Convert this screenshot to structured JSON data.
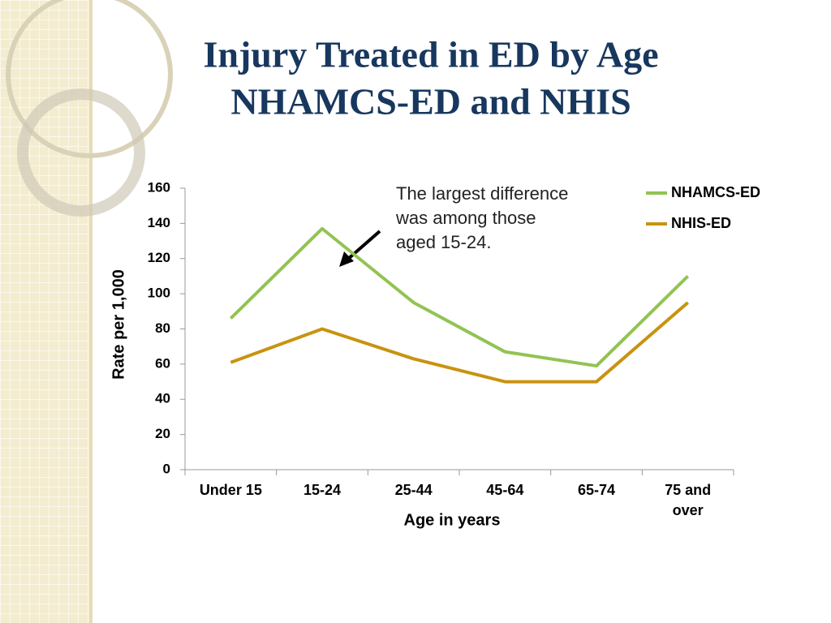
{
  "chart_data": {
    "type": "line",
    "title": [
      "Injury Treated in ED by Age",
      "NHAMCS-ED and NHIS"
    ],
    "annotation": [
      "The largest difference",
      "was among those",
      "aged 15-24."
    ],
    "x_label": "Age in years",
    "y_label": "Rate per 1,000",
    "categories": [
      "Under 15",
      "15-24",
      "25-44",
      "45-64",
      "65-74",
      "75 and over"
    ],
    "series": [
      {
        "name": "NHAMCS-ED",
        "color": "#92c353",
        "values": [
          86,
          137,
          95,
          67,
          59,
          110
        ]
      },
      {
        "name": "NHIS-ED",
        "color": "#c8930f",
        "values": [
          61,
          80,
          63,
          50,
          50,
          95
        ]
      }
    ],
    "ylim": [
      0,
      160
    ],
    "yticks": [
      0,
      20,
      40,
      60,
      80,
      100,
      120,
      140,
      160
    ],
    "grid": false,
    "legend": "upper right"
  }
}
